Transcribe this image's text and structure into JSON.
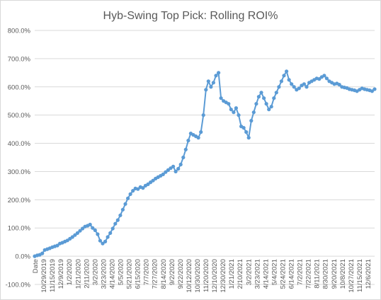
{
  "chart_data": {
    "type": "line",
    "title": "Hyb-Swing Top Pick: Rolling ROI%",
    "ylim": [
      -100,
      800
    ],
    "y_ticks": [
      "-100.0%",
      "0.0%",
      "100.0%",
      "200.0%",
      "300.0%",
      "400.0%",
      "500.0%",
      "600.0%",
      "700.0%",
      "800.0%"
    ],
    "x_first_label": "Date",
    "x_tick_labels": [
      "10/29/2019",
      "11/15/2019",
      "12/9/2019",
      "1/2/2020",
      "1/21/2020",
      "2/11/2020",
      "3/2/2020",
      "3/23/2020",
      "4/14/2020",
      "5/5/2020",
      "5/21/2020",
      "6/15/2020",
      "7/7/2020",
      "7/27/2020",
      "8/14/2020",
      "9/2/2020",
      "9/22/2020",
      "10/12/2020",
      "10/30/2020",
      "11/20/2020",
      "12/10/2020",
      "12/30/2020",
      "1/21/2021",
      "2/10/2021",
      "3/2/2021",
      "3/23/2021",
      "4/14/2021",
      "5/4/2021",
      "5/24/2021",
      "6/14/2021",
      "7/2/2021",
      "7/22/2021",
      "8/11/2021",
      "8/30/2021",
      "9/20/2021",
      "10/8/2021",
      "10/27/2021",
      "11/15/2021",
      "12/6/2021"
    ],
    "x_tick_labels_note": "",
    "grid": true,
    "legend": "none",
    "line_color": "#5b9bd5",
    "marker_color": "#5b9bd5",
    "x_domain": [
      0,
      540
    ],
    "series": [
      {
        "name": "",
        "x": [
          0,
          4,
          8,
          12,
          16,
          20,
          24,
          28,
          32,
          36,
          40,
          44,
          48,
          52,
          56,
          60,
          64,
          68,
          72,
          76,
          80,
          84,
          88,
          92,
          96,
          100,
          104,
          108,
          112,
          116,
          120,
          124,
          128,
          132,
          136,
          140,
          144,
          148,
          152,
          156,
          160,
          164,
          168,
          172,
          176,
          180,
          184,
          188,
          192,
          196,
          200,
          204,
          208,
          212,
          216,
          220,
          224,
          228,
          232,
          236,
          240,
          244,
          248,
          252,
          256,
          260,
          264,
          268,
          272,
          276,
          280,
          284,
          288,
          292,
          296,
          300,
          304,
          308,
          312,
          316,
          320,
          324,
          328,
          332,
          336,
          340,
          344,
          348,
          352,
          356,
          360,
          364,
          368,
          372,
          376,
          380,
          384,
          388,
          392,
          396,
          400,
          404,
          408,
          412,
          416,
          420,
          424,
          428,
          432,
          436,
          440,
          444,
          448,
          452,
          456,
          460,
          464,
          468,
          472,
          476,
          480,
          484,
          488,
          492,
          496,
          500,
          504,
          508,
          512,
          516,
          520,
          524,
          528,
          532,
          536,
          540
        ],
        "y": [
          0,
          3,
          5,
          10,
          22,
          25,
          28,
          32,
          35,
          38,
          45,
          48,
          52,
          56,
          62,
          68,
          75,
          82,
          90,
          98,
          105,
          108,
          112,
          100,
          92,
          78,
          55,
          45,
          52,
          68,
          82,
          98,
          115,
          128,
          145,
          165,
          185,
          205,
          220,
          232,
          240,
          238,
          245,
          242,
          250,
          255,
          262,
          268,
          275,
          280,
          285,
          290,
          298,
          305,
          312,
          318,
          300,
          310,
          325,
          350,
          378,
          410,
          435,
          430,
          425,
          420,
          440,
          500,
          590,
          620,
          600,
          615,
          640,
          650,
          560,
          550,
          545,
          540,
          520,
          510,
          525,
          500,
          460,
          455,
          440,
          420,
          480,
          510,
          540,
          565,
          580,
          560,
          540,
          520,
          530,
          560,
          580,
          600,
          620,
          640,
          655,
          625,
          610,
          600,
          590,
          595,
          605,
          610,
          600,
          615,
          620,
          625,
          630,
          628,
          635,
          640,
          630,
          620,
          615,
          610,
          612,
          608,
          600,
          598,
          596,
          592,
          590,
          588,
          585,
          590,
          595,
          592,
          590,
          588,
          585,
          592
        ]
      }
    ]
  }
}
